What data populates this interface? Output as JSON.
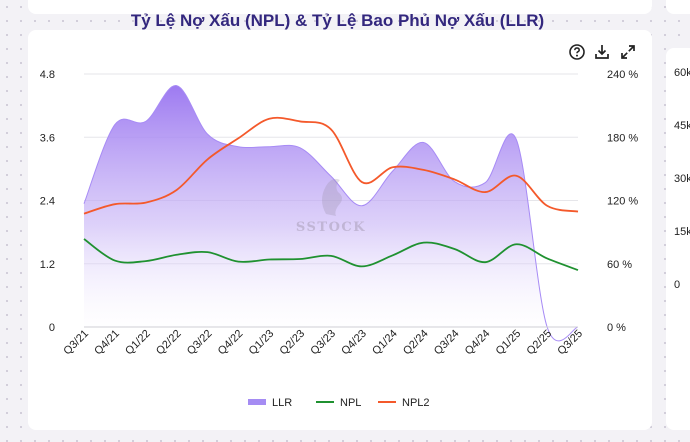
{
  "chart_data": {
    "type": "line",
    "title": "Tỷ Lệ Nợ Xấu (NPL) & Tỷ Lệ Bao Phủ Nợ Xấu (LLR)",
    "categories": [
      "Q3/21",
      "Q4/21",
      "Q1/22",
      "Q2/22",
      "Q3/22",
      "Q4/22",
      "Q1/23",
      "Q2/23",
      "Q3/23",
      "Q4/23",
      "Q1/24",
      "Q2/24",
      "Q3/24",
      "Q4/24",
      "Q1/25",
      "Q2/25",
      "Q3/25"
    ],
    "y_left": {
      "ticks": [
        "0",
        "1.2",
        "2.4",
        "3.6",
        "4.8"
      ],
      "range": [
        0,
        4.8
      ]
    },
    "y_right": {
      "ticks": [
        "0 %",
        "60 %",
        "120 %",
        "180 %",
        "240 %"
      ],
      "range": [
        0,
        240
      ]
    },
    "series": [
      {
        "name": "LLR",
        "type": "area",
        "axis": "right",
        "color": "#9b7cf2",
        "values": [
          117,
          192,
          195,
          229,
          183,
          171,
          171,
          170,
          143,
          115,
          148,
          175,
          138,
          137,
          178,
          0,
          0
        ]
      },
      {
        "name": "NPL",
        "type": "line",
        "axis": "left",
        "color": "#1f9130",
        "values": [
          1.67,
          1.26,
          1.25,
          1.37,
          1.42,
          1.24,
          1.28,
          1.29,
          1.35,
          1.15,
          1.36,
          1.6,
          1.48,
          1.23,
          1.57,
          1.3,
          1.08
        ]
      },
      {
        "name": "NPL2",
        "type": "line",
        "axis": "left",
        "color": "#f4592b",
        "values": [
          2.15,
          2.33,
          2.36,
          2.6,
          3.18,
          3.58,
          3.95,
          3.9,
          3.75,
          2.75,
          3.03,
          2.98,
          2.8,
          2.56,
          2.87,
          2.3,
          2.19
        ]
      }
    ],
    "legend": {
      "placement": "bottom"
    },
    "grid": true,
    "watermark": "SSTOCK"
  },
  "right_axis_partial": [
    "60k",
    "45k",
    "30k",
    "15k",
    "0"
  ],
  "icons": [
    "help-circle-icon",
    "download-icon",
    "expand-icon"
  ]
}
